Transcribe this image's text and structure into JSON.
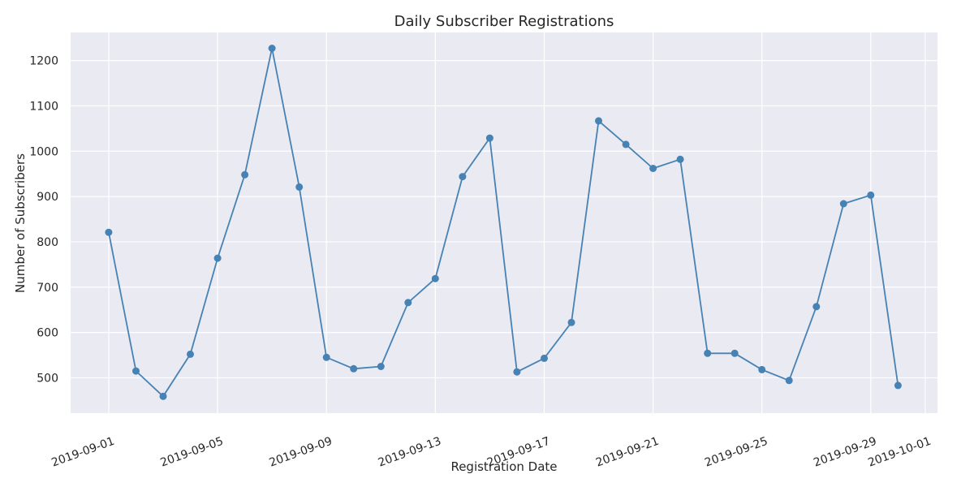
{
  "chart_data": {
    "type": "line",
    "title": "Daily Subscriber Registrations",
    "xlabel": "Registration Date",
    "ylabel": "Number of Subscribers",
    "xlim": [
      "2019-08-30",
      "2019-10-01"
    ],
    "ylim": [
      422,
      1262
    ],
    "grid": true,
    "x_ticks": [
      "2019-09-01",
      "2019-09-05",
      "2019-09-09",
      "2019-09-13",
      "2019-09-17",
      "2019-09-21",
      "2019-09-25",
      "2019-09-29",
      "2019-10-01"
    ],
    "y_ticks": [
      500,
      600,
      700,
      800,
      900,
      1000,
      1100,
      1200
    ],
    "colors": {
      "line": "#4682b4",
      "background": "#eaeaf2",
      "grid": "#ffffff"
    },
    "series": [
      {
        "x": [
          "2019-09-01",
          "2019-09-02",
          "2019-09-03",
          "2019-09-04",
          "2019-09-05",
          "2019-09-06",
          "2019-09-07",
          "2019-09-08",
          "2019-09-09",
          "2019-09-10",
          "2019-09-11",
          "2019-09-12",
          "2019-09-13",
          "2019-09-14",
          "2019-09-15",
          "2019-09-16",
          "2019-09-17",
          "2019-09-18",
          "2019-09-19",
          "2019-09-20",
          "2019-09-21",
          "2019-09-22",
          "2019-09-23",
          "2019-09-24",
          "2019-09-25",
          "2019-09-26",
          "2019-09-27",
          "2019-09-28",
          "2019-09-29",
          "2019-09-30"
        ],
        "values": [
          821,
          515,
          459,
          552,
          764,
          948,
          1227,
          921,
          545,
          520,
          525,
          666,
          719,
          944,
          1029,
          513,
          543,
          622,
          1067,
          1015,
          962,
          982,
          554,
          554,
          518,
          494,
          657,
          884,
          903,
          483
        ]
      }
    ]
  }
}
